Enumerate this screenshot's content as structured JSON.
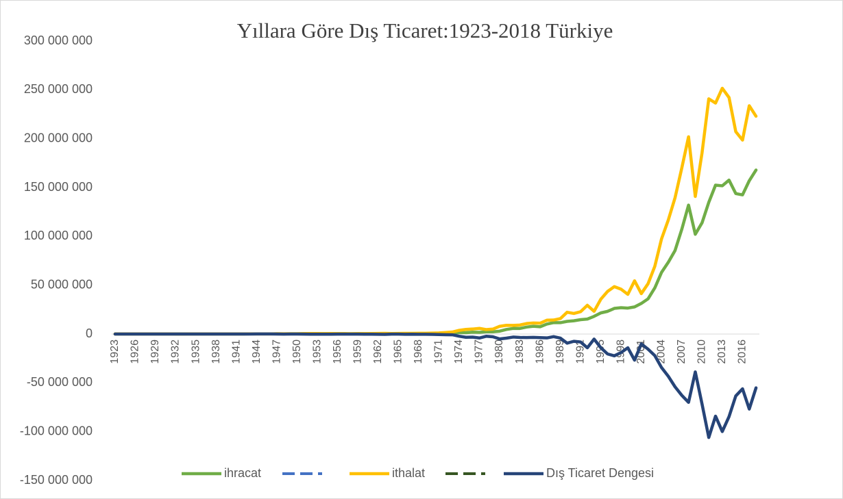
{
  "chart_data": {
    "type": "line",
    "title": "Yıllara Göre Dış Ticaret:1923-2018 Türkiye",
    "categories": [
      "1923",
      null,
      null,
      "1926",
      null,
      null,
      "1929",
      null,
      null,
      "1932",
      null,
      null,
      "1935",
      null,
      null,
      "1938",
      null,
      null,
      "1941",
      null,
      null,
      "1944",
      null,
      null,
      "1947",
      null,
      null,
      "1950",
      null,
      null,
      "1953",
      null,
      null,
      "1956",
      null,
      null,
      "1959",
      null,
      null,
      "1962",
      null,
      null,
      "1965",
      null,
      null,
      "1968",
      null,
      null,
      "1971",
      null,
      null,
      "1974",
      null,
      null,
      "1977",
      null,
      null,
      "1980",
      null,
      null,
      "1983",
      null,
      null,
      "1986",
      null,
      null,
      "1989",
      null,
      null,
      "1992",
      null,
      null,
      "1995",
      null,
      null,
      "1998",
      null,
      null,
      "2001",
      null,
      null,
      "2004",
      null,
      null,
      "2007",
      null,
      null,
      "2010",
      null,
      null,
      "2013",
      null,
      null,
      "2016",
      null,
      null
    ],
    "series": [
      {
        "name": "ihracat",
        "color": "#70ad47",
        "values": [
          51000,
          82000,
          102000,
          96000,
          80000,
          88000,
          85000,
          72000,
          60000,
          48000,
          58000,
          69000,
          72000,
          94000,
          109000,
          115000,
          100000,
          81000,
          91000,
          127000,
          197000,
          178000,
          168000,
          215000,
          223000,
          197000,
          248000,
          263000,
          314000,
          363000,
          396000,
          335000,
          313000,
          305000,
          345000,
          247000,
          354000,
          321000,
          347000,
          381000,
          368000,
          411000,
          464000,
          490000,
          523000,
          496000,
          537000,
          588000,
          677000,
          885000,
          1317000,
          1532000,
          1401000,
          1960000,
          1753000,
          2288000,
          2261000,
          2910000,
          4703000,
          5746000,
          5728000,
          7134000,
          7958000,
          7457000,
          10190000,
          11662000,
          11625000,
          12959000,
          13593000,
          14715000,
          15345000,
          18106000,
          21637000,
          23224000,
          26261000,
          26974000,
          26587000,
          27775000,
          31334000,
          36059000,
          47253000,
          63167000,
          73476000,
          85535000,
          107272000,
          132027000,
          102143000,
          113883000,
          134907000,
          152462000,
          151803000,
          157610000,
          143839000,
          142530000,
          156993000,
          167921000
        ]
      },
      {
        "name": "ithalat",
        "color": "#ffc000",
        "values": [
          87000,
          101000,
          129000,
          121000,
          108000,
          113000,
          124000,
          70000,
          60000,
          41000,
          45000,
          65000,
          70000,
          73000,
          91000,
          119000,
          92000,
          69000,
          55000,
          113000,
          155000,
          126000,
          97000,
          119000,
          224000,
          275000,
          290000,
          286000,
          402000,
          556000,
          533000,
          478000,
          498000,
          407000,
          397000,
          315000,
          470000,
          468000,
          510000,
          620000,
          688000,
          537000,
          572000,
          718000,
          685000,
          764000,
          801000,
          948000,
          1171000,
          1563000,
          2086000,
          3778000,
          4739000,
          5129000,
          5796000,
          4599000,
          5069000,
          7909000,
          8933000,
          8843000,
          9235000,
          10757000,
          11343000,
          11105000,
          14158000,
          14335000,
          15792000,
          22302000,
          21047000,
          22871000,
          29428000,
          23270000,
          35709000,
          43627000,
          48559000,
          45921000,
          40671000,
          54503000,
          41399000,
          51554000,
          69340000,
          97540000,
          116774000,
          139576000,
          170063000,
          201964000,
          140928000,
          185544000,
          240842000,
          236545000,
          251661000,
          242177000,
          207234000,
          198618000,
          233800000,
          223047000
        ]
      },
      {
        "name": "Dış Ticaret Dengesi",
        "color": "#264478",
        "values": [
          -36000,
          -19000,
          -27000,
          -25000,
          -28000,
          -25000,
          -39000,
          2000,
          0,
          7000,
          13000,
          4000,
          2000,
          21000,
          18000,
          -4000,
          8000,
          12000,
          36000,
          14000,
          42000,
          52000,
          71000,
          96000,
          -1000,
          -78000,
          -42000,
          -23000,
          -88000,
          -193000,
          -137000,
          -143000,
          -185000,
          -102000,
          -52000,
          -68000,
          -116000,
          -147000,
          -163000,
          -239000,
          -320000,
          -126000,
          -108000,
          -228000,
          -162000,
          -268000,
          -264000,
          -360000,
          -494000,
          -678000,
          -769000,
          -2246000,
          -3338000,
          -3169000,
          -4043000,
          -2311000,
          -2808000,
          -4999000,
          -4230000,
          -3097000,
          -3507000,
          -3623000,
          -3385000,
          -3648000,
          -3968000,
          -2673000,
          -4167000,
          -9343000,
          -7454000,
          -8156000,
          -14083000,
          -5164000,
          -14072000,
          -20403000,
          -22298000,
          -18947000,
          -14084000,
          -26728000,
          -10065000,
          -15495000,
          -22087000,
          -34373000,
          -43298000,
          -54041000,
          -62791000,
          -69937000,
          -38785000,
          -71661000,
          -105935000,
          -84083000,
          -99858000,
          -84567000,
          -63395000,
          -56088000,
          -76807000,
          -55126000
        ]
      }
    ],
    "ylim": [
      -150000000,
      300000000
    ],
    "yticks": [
      {
        "value": -150000000,
        "label": "-150 000 000"
      },
      {
        "value": -100000000,
        "label": "-100 000 000"
      },
      {
        "value": -50000000,
        "label": "-50 000 000"
      },
      0,
      {
        "value": 50000000,
        "label": "50 000 000"
      },
      {
        "value": 100000000,
        "label": "100 000 000"
      },
      {
        "value": 150000000,
        "label": "150 000 000"
      },
      {
        "value": 200000000,
        "label": "200 000 000"
      },
      {
        "value": 250000000,
        "label": "250 000 000"
      },
      {
        "value": 300000000,
        "label": "300 000 000"
      }
    ],
    "grid": false,
    "legend": "bottom"
  }
}
